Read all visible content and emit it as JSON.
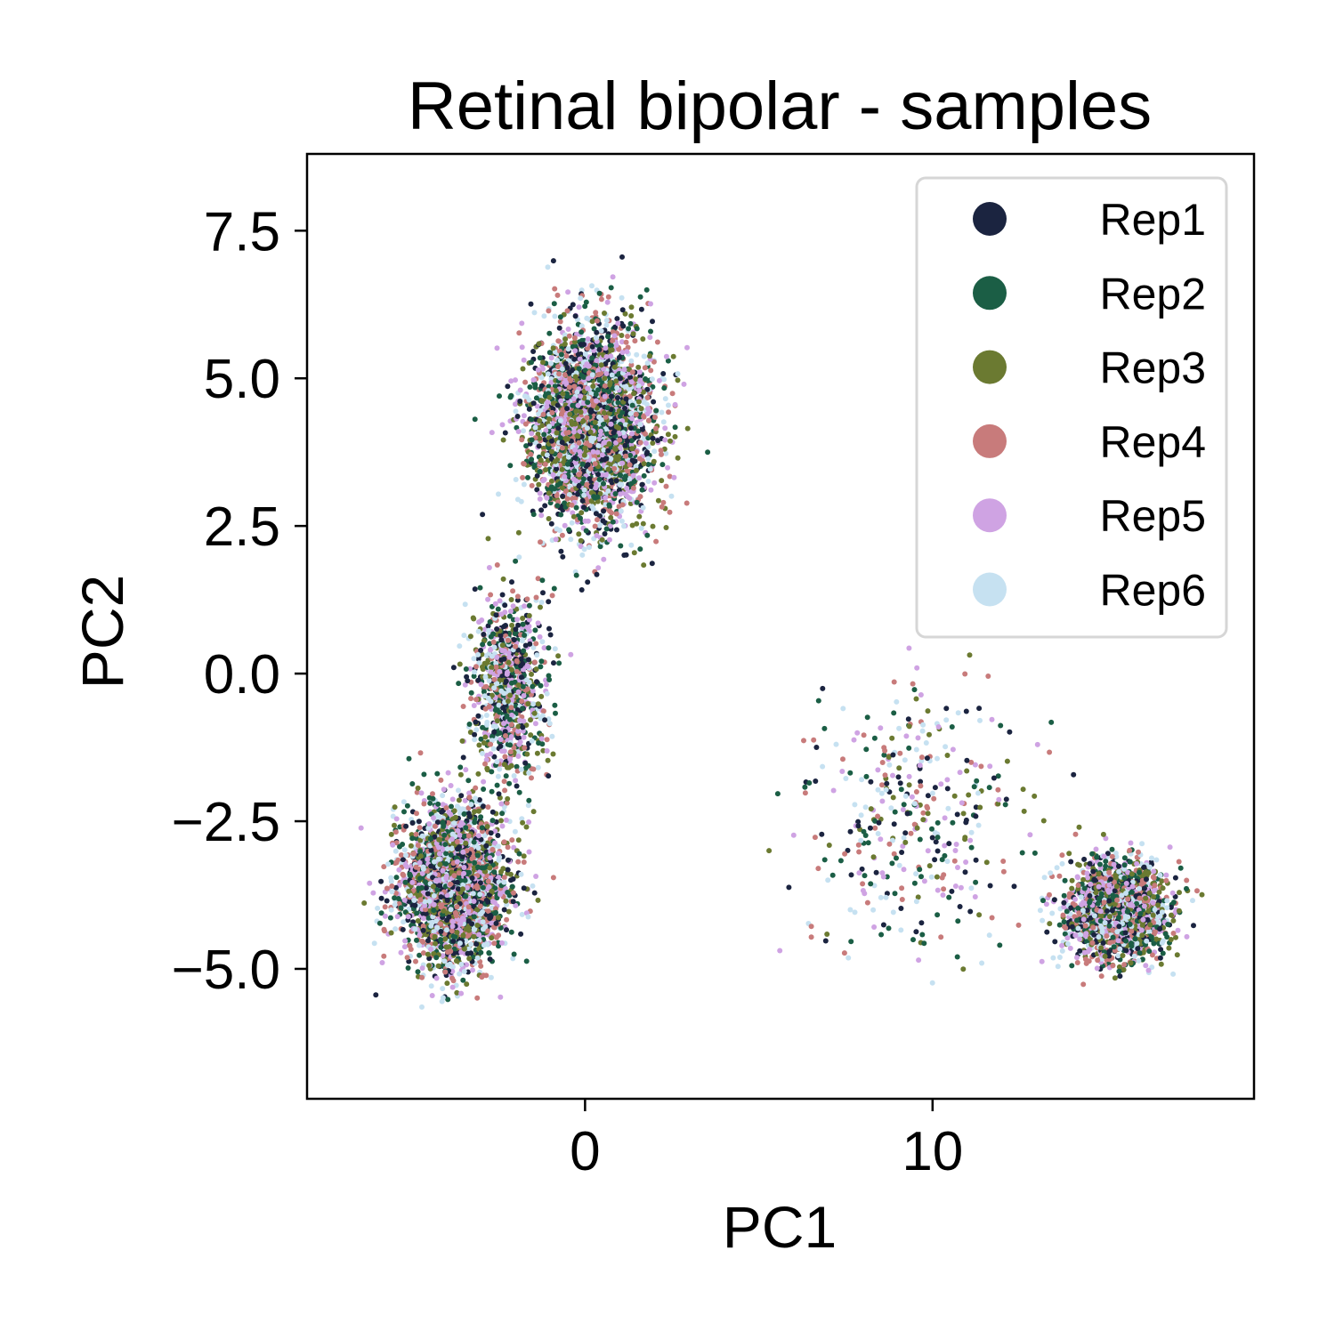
{
  "chart_data": {
    "type": "scatter",
    "title": "Retinal bipolar - samples",
    "xlabel": "PC1",
    "ylabel": "PC2",
    "xlim": [
      -8,
      19.25
    ],
    "ylim": [
      -7.2,
      8.8
    ],
    "xticks": [
      {
        "value": 0,
        "label": "0"
      },
      {
        "value": 10,
        "label": "10"
      }
    ],
    "yticks": [
      {
        "value": 7.5,
        "label": "7.5"
      },
      {
        "value": 5.0,
        "label": "5.0"
      },
      {
        "value": 2.5,
        "label": "2.5"
      },
      {
        "value": 0.0,
        "label": "0.0"
      },
      {
        "value": -2.5,
        "label": "−2.5"
      },
      {
        "value": -5.0,
        "label": "−5.0"
      }
    ],
    "grid": false,
    "legend_position": "top-right",
    "series": [
      {
        "name": "Rep1",
        "color": "#1b2440"
      },
      {
        "name": "Rep2",
        "color": "#1b5e45"
      },
      {
        "name": "Rep3",
        "color": "#6b7a31"
      },
      {
        "name": "Rep4",
        "color": "#c87b7b"
      },
      {
        "name": "Rep5",
        "color": "#cfa3e3"
      },
      {
        "name": "Rep6",
        "color": "#c6e1f1"
      }
    ],
    "clusters": [
      {
        "center": [
          0.2,
          4.2
        ],
        "spread": [
          1.6,
          1.5
        ],
        "weight": 0.36
      },
      {
        "center": [
          -3.8,
          -3.6
        ],
        "spread": [
          1.4,
          1.2
        ],
        "weight": 0.3
      },
      {
        "center": [
          15.3,
          -4.0
        ],
        "spread": [
          1.3,
          0.75
        ],
        "weight": 0.2
      },
      {
        "center": [
          -2.2,
          -0.2
        ],
        "spread": [
          1.0,
          1.5
        ],
        "weight": 0.1
      },
      {
        "center": [
          9.5,
          -2.5
        ],
        "spread": [
          3.0,
          2.0
        ],
        "weight": 0.04
      }
    ],
    "point_count": 9000
  }
}
